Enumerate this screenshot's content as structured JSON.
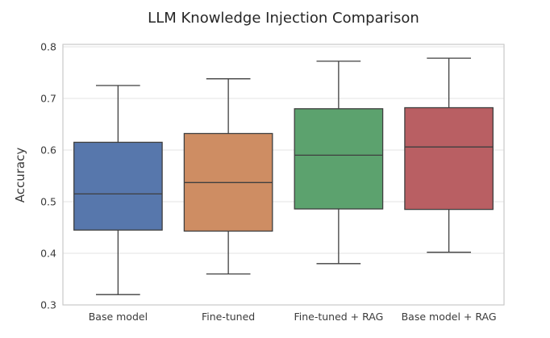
{
  "chart_data": {
    "type": "box",
    "title": "LLM Knowledge Injection Comparison",
    "xlabel": "",
    "ylabel": "Accuracy",
    "ylim": [
      0.3,
      0.8
    ],
    "yticks": [
      0.3,
      0.4,
      0.5,
      0.6,
      0.7,
      0.8
    ],
    "grid": "horizontal",
    "legend": "none",
    "categories": [
      "Base model",
      "Fine-tuned",
      "Fine-tuned + RAG",
      "Base model + RAG"
    ],
    "series": [
      {
        "name": "Base model",
        "color": "#5777ac",
        "whisker_low": 0.32,
        "q1": 0.445,
        "median": 0.515,
        "q3": 0.615,
        "whisker_high": 0.725
      },
      {
        "name": "Fine-tuned",
        "color": "#ce8d63",
        "whisker_low": 0.36,
        "q1": 0.443,
        "median": 0.537,
        "q3": 0.632,
        "whisker_high": 0.738
      },
      {
        "name": "Fine-tuned + RAG",
        "color": "#5ca26e",
        "whisker_low": 0.38,
        "q1": 0.486,
        "median": 0.59,
        "q3": 0.68,
        "whisker_high": 0.772
      },
      {
        "name": "Base model + RAG",
        "color": "#b95f63",
        "whisker_low": 0.402,
        "q1": 0.485,
        "median": 0.606,
        "q3": 0.682,
        "whisker_high": 0.778
      }
    ],
    "styles": {
      "edge_color": "#3f3f3f",
      "grid_color": "#e3e3e3",
      "frame_color": "#c9c9c9",
      "background": "#ffffff",
      "title_color": "#262626",
      "tick_color": "#3b3b3b"
    }
  }
}
